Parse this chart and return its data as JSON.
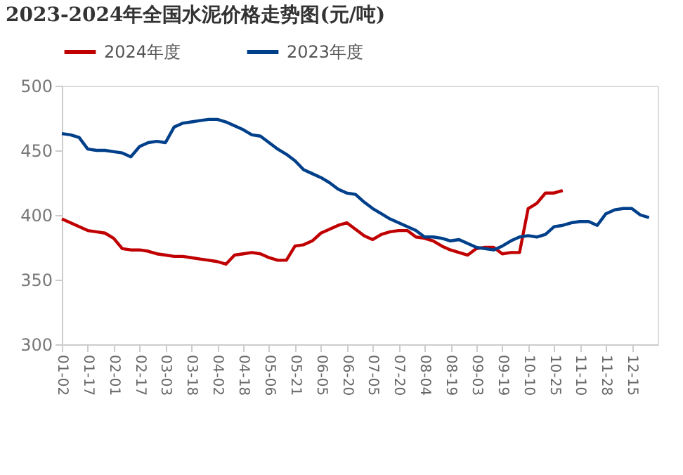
{
  "chart_data": {
    "type": "line",
    "title": "2023-2024年全国水泥价格走势图(元/吨)",
    "categories": [
      "01-02",
      null,
      null,
      "01-17",
      null,
      null,
      "02-01",
      null,
      null,
      "02-17",
      null,
      null,
      "03-03",
      null,
      null,
      "03-18",
      null,
      null,
      "04-02",
      null,
      null,
      "04-18",
      null,
      null,
      "05-06",
      null,
      null,
      "05-21",
      null,
      null,
      "06-05",
      null,
      null,
      "06-20",
      null,
      null,
      "07-05",
      null,
      null,
      "07-20",
      null,
      null,
      "08-04",
      null,
      null,
      "08-19",
      null,
      null,
      "09-03",
      null,
      null,
      "09-19",
      null,
      null,
      "10-10",
      null,
      null,
      "10-25",
      null,
      null,
      "11-10",
      null,
      null,
      "11-28",
      null,
      null,
      "12-15",
      null,
      null,
      null
    ],
    "series": [
      {
        "name": "2024年度",
        "color": "#c00000",
        "values": [
          397,
          394,
          391,
          388,
          387,
          386,
          382,
          374,
          373,
          373,
          372,
          370,
          369,
          368,
          368,
          367,
          366,
          365,
          364,
          362,
          369,
          370,
          371,
          370,
          367,
          365,
          365,
          376,
          377,
          380,
          386,
          389,
          392,
          394,
          389,
          384,
          381,
          385,
          387,
          388,
          388,
          383,
          382,
          380,
          376,
          373,
          371,
          369,
          374,
          375,
          375,
          370,
          371,
          371,
          405,
          409,
          417,
          417,
          419,
          null,
          null,
          null,
          null,
          null,
          null,
          null,
          null,
          null,
          null,
          null
        ]
      },
      {
        "name": "2023年度",
        "color": "#003f8a",
        "values": [
          463,
          462,
          460,
          451,
          450,
          450,
          449,
          448,
          445,
          453,
          456,
          457,
          456,
          468,
          471,
          472,
          473,
          474,
          474,
          472,
          469,
          466,
          462,
          461,
          456,
          451,
          447,
          442,
          435,
          432,
          429,
          425,
          420,
          417,
          416,
          410,
          405,
          401,
          397,
          394,
          391,
          388,
          383,
          383,
          382,
          380,
          381,
          378,
          375,
          374,
          373,
          376,
          380,
          383,
          384,
          383,
          385,
          391,
          392,
          394,
          395,
          395,
          392,
          401,
          404,
          405,
          405,
          400,
          398,
          null
        ]
      }
    ],
    "ylim": [
      300,
      500
    ],
    "yticks": [
      300,
      350,
      400,
      450,
      500
    ],
    "grid": false,
    "legend": "top",
    "line_style": "solid"
  }
}
